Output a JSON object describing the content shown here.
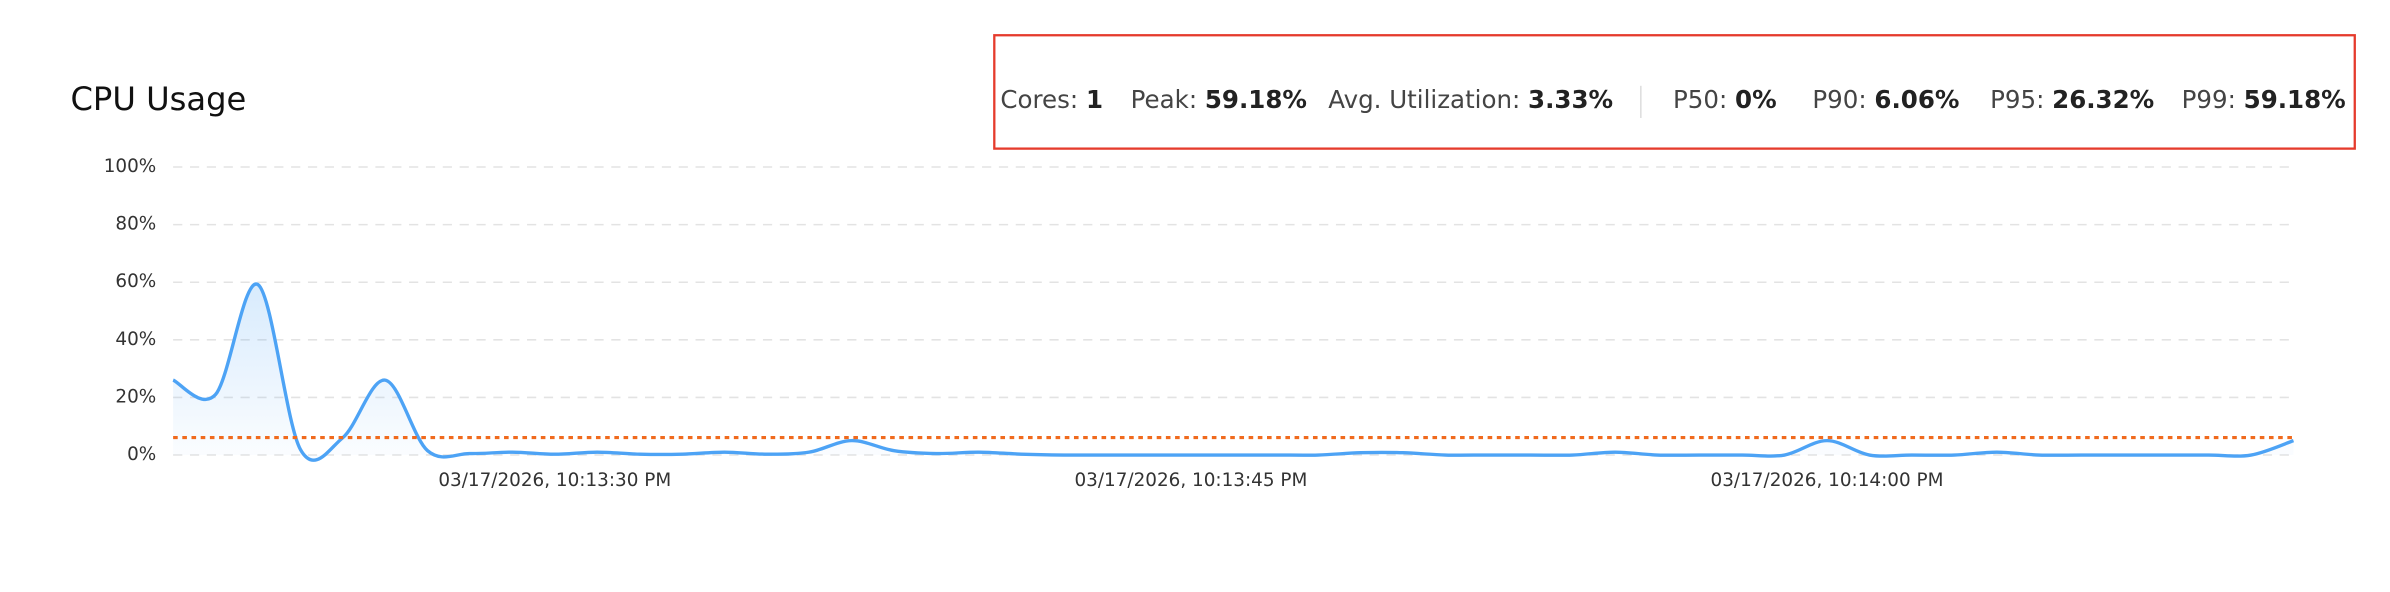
{
  "chart_data": {
    "type": "line",
    "title": "CPU Usage",
    "stats": [
      {
        "label": "Cores:",
        "value": "1"
      },
      {
        "label": "Peak:",
        "value": "59.18%"
      },
      {
        "label": "Avg. Utilization:",
        "value": "3.33%"
      },
      {
        "label": "P50:",
        "value": "0%"
      },
      {
        "label": "P90:",
        "value": "6.06%"
      },
      {
        "label": "P95:",
        "value": "26.32%"
      },
      {
        "label": "P99:",
        "value": "59.18%"
      }
    ],
    "x": [
      "03/17/2026, 10:13:21 PM",
      "03/17/2026, 10:13:22 PM",
      "03/17/2026, 10:13:23 PM",
      "03/17/2026, 10:13:24 PM",
      "03/17/2026, 10:13:25 PM",
      "03/17/2026, 10:13:26 PM",
      "03/17/2026, 10:13:27 PM",
      "03/17/2026, 10:13:28 PM",
      "03/17/2026, 10:13:29 PM",
      "03/17/2026, 10:13:30 PM",
      "03/17/2026, 10:13:31 PM",
      "03/17/2026, 10:13:32 PM",
      "03/17/2026, 10:13:33 PM",
      "03/17/2026, 10:13:34 PM",
      "03/17/2026, 10:13:35 PM",
      "03/17/2026, 10:13:36 PM",
      "03/17/2026, 10:13:37 PM",
      "03/17/2026, 10:13:38 PM",
      "03/17/2026, 10:13:39 PM",
      "03/17/2026, 10:13:40 PM",
      "03/17/2026, 10:13:41 PM",
      "03/17/2026, 10:13:42 PM",
      "03/17/2026, 10:13:43 PM",
      "03/17/2026, 10:13:44 PM",
      "03/17/2026, 10:13:45 PM",
      "03/17/2026, 10:13:46 PM",
      "03/17/2026, 10:13:47 PM",
      "03/17/2026, 10:13:48 PM",
      "03/17/2026, 10:13:49 PM",
      "03/17/2026, 10:13:50 PM",
      "03/17/2026, 10:13:51 PM",
      "03/17/2026, 10:13:52 PM",
      "03/17/2026, 10:13:53 PM",
      "03/17/2026, 10:13:54 PM",
      "03/17/2026, 10:13:55 PM",
      "03/17/2026, 10:13:56 PM",
      "03/17/2026, 10:13:57 PM",
      "03/17/2026, 10:13:58 PM",
      "03/17/2026, 10:13:59 PM",
      "03/17/2026, 10:14:00 PM",
      "03/17/2026, 10:14:01 PM",
      "03/17/2026, 10:14:02 PM",
      "03/17/2026, 10:14:03 PM",
      "03/17/2026, 10:14:04 PM",
      "03/17/2026, 10:14:05 PM",
      "03/17/2026, 10:14:06 PM",
      "03/17/2026, 10:14:07 PM",
      "03/17/2026, 10:14:08 PM",
      "03/17/2026, 10:14:09 PM",
      "03/17/2026, 10:14:10 PM",
      "03/17/2026, 10:14:11 PM"
    ],
    "series": [
      {
        "name": "CPU",
        "color": "#4da3f5",
        "values": [
          26,
          21,
          59.18,
          2,
          6,
          26,
          1.5,
          0.5,
          1,
          0.3,
          1,
          0.3,
          0.3,
          1,
          0.3,
          1,
          5,
          1.5,
          0.5,
          1,
          0.3,
          0,
          0,
          0,
          0,
          0,
          0,
          0,
          0.8,
          0.8,
          0,
          0,
          0,
          0,
          1,
          0,
          0,
          0,
          0,
          5,
          0,
          0,
          0,
          1,
          0,
          0,
          0,
          0,
          0,
          0,
          5
        ]
      }
    ],
    "reference_line": {
      "value": 6.06,
      "color": "#f06a1d"
    },
    "xlim": [
      "03/17/2026, 10:13:21 PM",
      "03/17/2026, 10:14:11 PM"
    ],
    "xticks": [
      "03/17/2026, 10:13:30 PM",
      "03/17/2026, 10:13:45 PM",
      "03/17/2026, 10:14:00 PM"
    ],
    "ylim": [
      0,
      100
    ],
    "yticks": [
      {
        "value": 0,
        "label": "0%"
      },
      {
        "value": 20,
        "label": "20%"
      },
      {
        "value": 40,
        "label": "40%"
      },
      {
        "value": 60,
        "label": "60%"
      },
      {
        "value": 80,
        "label": "80%"
      },
      {
        "value": 100,
        "label": "100%"
      }
    ],
    "grid": true
  }
}
